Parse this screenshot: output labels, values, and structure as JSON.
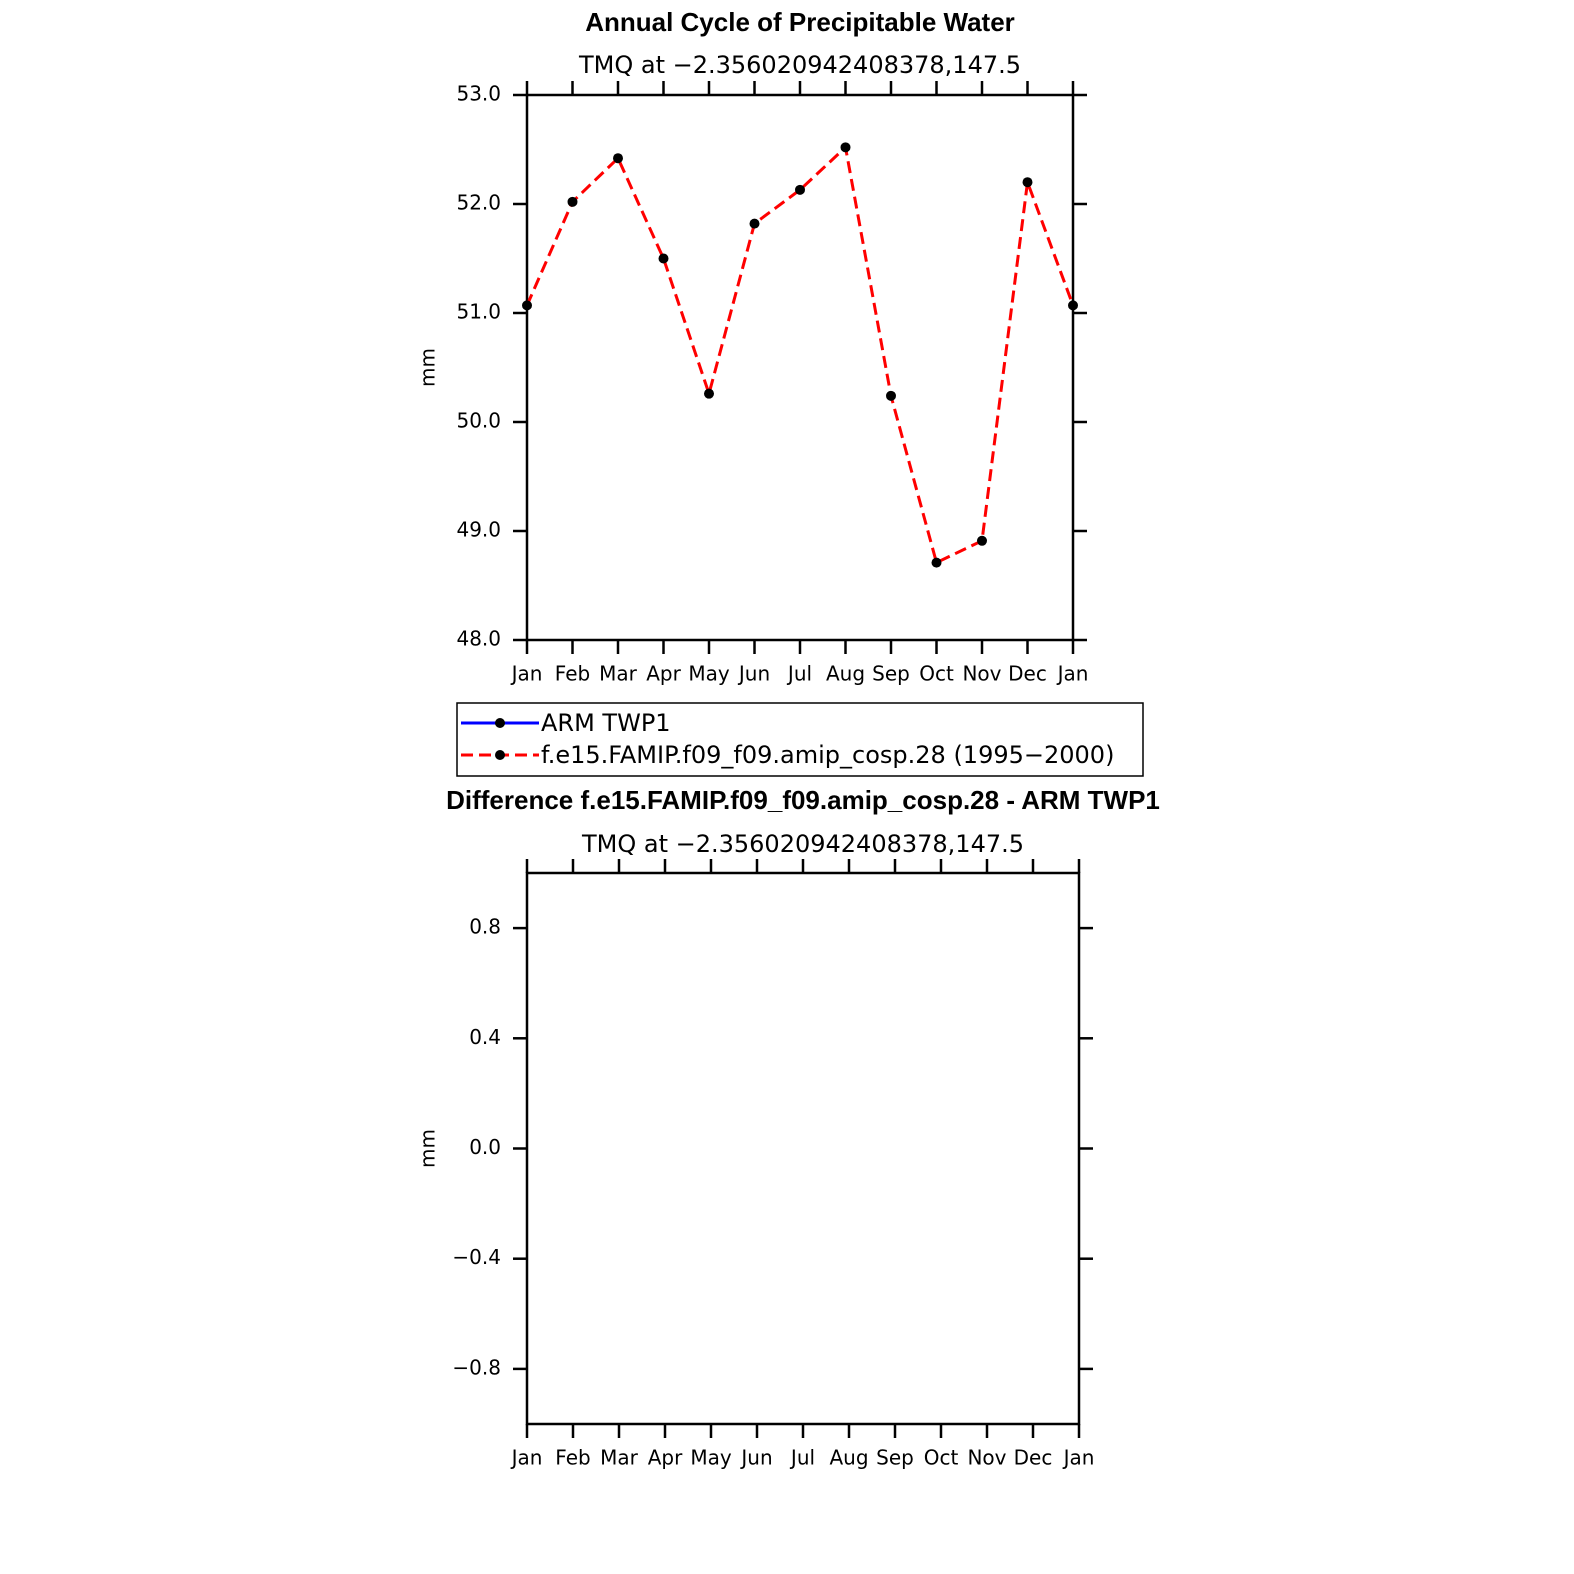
{
  "chart_data": [
    {
      "type": "line",
      "title": "Annual Cycle of Precipitable Water",
      "subtitle": "TMQ at −2.356020942408378,147.5",
      "y_label": "mm",
      "categories": [
        "Jan",
        "Feb",
        "Mar",
        "Apr",
        "May",
        "Jun",
        "Jul",
        "Aug",
        "Sep",
        "Oct",
        "Nov",
        "Dec",
        "Jan"
      ],
      "series": [
        {
          "name": "ARM TWP1",
          "color": "#0000ff",
          "style": "solid",
          "values": [
            null,
            null,
            null,
            null,
            null,
            null,
            null,
            null,
            null,
            null,
            null,
            null,
            null
          ]
        },
        {
          "name": "f.e15.FAMIP.f09_f09.amip_cosp.28 (1995−2000)",
          "color": "#ff0000",
          "style": "dashed",
          "values": [
            51.07,
            52.02,
            52.42,
            51.5,
            50.26,
            51.82,
            52.13,
            52.52,
            50.24,
            48.71,
            48.91,
            52.2,
            51.07
          ]
        }
      ],
      "markers": true,
      "legend": "below",
      "ylim": [
        48,
        53
      ],
      "yticks": [
        {
          "value": 48,
          "label": "48.0"
        },
        {
          "value": 49,
          "label": "49.0"
        },
        {
          "value": 50,
          "label": "50.0"
        },
        {
          "value": 51,
          "label": "51.0"
        },
        {
          "value": 52,
          "label": "52.0"
        },
        {
          "value": 53,
          "label": "53.0"
        }
      ]
    },
    {
      "type": "line",
      "title": "Difference f.e15.FAMIP.f09_f09.amip_cosp.28 - ARM TWP1",
      "subtitle": "TMQ at −2.356020942408378,147.5",
      "y_label": "mm",
      "categories": [
        "Jan",
        "Feb",
        "Mar",
        "Apr",
        "May",
        "Jun",
        "Jul",
        "Aug",
        "Sep",
        "Oct",
        "Nov",
        "Dec",
        "Jan"
      ],
      "series": [],
      "ylim": [
        -1,
        1
      ],
      "yticks": [
        {
          "value": -0.8,
          "label": "−0.8"
        },
        {
          "value": -0.4,
          "label": "−0.4"
        },
        {
          "value": 0,
          "label": "0.0"
        },
        0.4,
        0.8
      ]
    }
  ]
}
